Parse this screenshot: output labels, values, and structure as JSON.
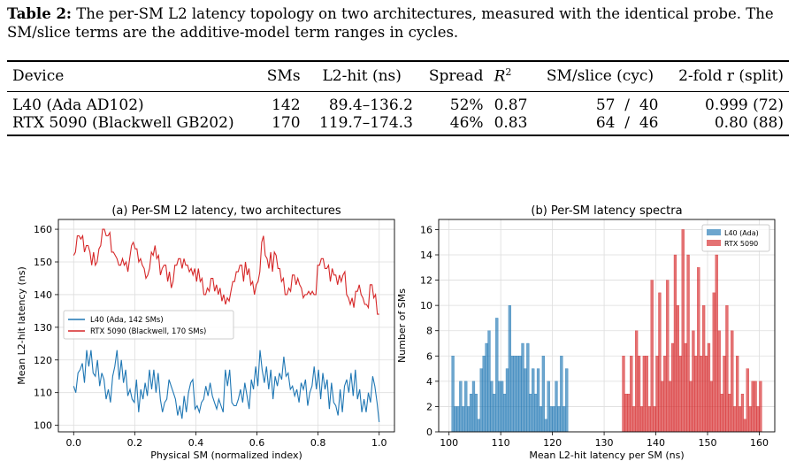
{
  "caption": {
    "label": "Table 2:",
    "text": " The per-SM L2 latency topology on two architectures, measured with the identical probe. The SM/slice terms are the additive-model term ranges in cycles."
  },
  "table": {
    "headers": [
      "Device",
      "SMs",
      "L2-hit (ns)",
      "Spread",
      "R",
      "SM/slice (cyc)",
      "2-fold r (split)"
    ],
    "r_superscript": "2",
    "rows": [
      [
        "L40 (Ada AD102)",
        "142",
        "89.4–136.2",
        "52%",
        "0.87",
        "57  /  40",
        "0.999 (72)"
      ],
      [
        "RTX 5090 (Blackwell GB202)",
        "170",
        "119.7–174.3",
        "46%",
        "0.83",
        "64  /  46",
        "0.80 (88)"
      ]
    ]
  },
  "chart_data": [
    {
      "type": "line",
      "title": "(a) Per-SM L2 latency, two architectures",
      "xlabel": "Physical SM (normalized index)",
      "ylabel": "Mean L2-hit latency (ns)",
      "xlim": [
        -0.05,
        1.05
      ],
      "ylim": [
        98,
        163
      ],
      "xticks": [
        "0.0",
        "0.2",
        "0.4",
        "0.6",
        "0.8",
        "1.0"
      ],
      "yticks": [
        "100",
        "110",
        "120",
        "130",
        "140",
        "150",
        "160"
      ],
      "grid": true,
      "legend": "center-left",
      "series": [
        {
          "name": "L40 (Ada, 142 SMs)",
          "color": "#1f77b4",
          "x": [
            0,
            0.00709,
            0.01418,
            0.02128,
            0.02837,
            0.03546,
            0.04255,
            0.04965,
            0.05674,
            0.06383,
            0.07092,
            0.07801,
            0.08511,
            0.0922,
            0.09929,
            0.10638,
            0.11348,
            0.12057,
            0.12766,
            0.13475,
            0.14184,
            0.14894,
            0.15603,
            0.16312,
            0.17021,
            0.1773,
            0.1844,
            0.19149,
            0.19858,
            0.20567,
            0.21277,
            0.21986,
            0.22695,
            0.23404,
            0.24113,
            0.24823,
            0.25532,
            0.26241,
            0.2695,
            0.2766,
            0.28369,
            0.29078,
            0.29787,
            0.30496,
            0.31206,
            0.31915,
            0.32624,
            0.33333,
            0.34043,
            0.34752,
            0.35461,
            0.3617,
            0.36879,
            0.37589,
            0.38298,
            0.39007,
            0.39716,
            0.40426,
            0.41135,
            0.41844,
            0.42553,
            0.43262,
            0.43972,
            0.44681,
            0.4539,
            0.46099,
            0.46809,
            0.47518,
            0.48227,
            0.48936,
            0.49645,
            0.50355,
            0.51064,
            0.51773,
            0.52482,
            0.53191,
            0.53901,
            0.5461,
            0.55319,
            0.56028,
            0.56738,
            0.57447,
            0.58156,
            0.58865,
            0.59574,
            0.60284,
            0.60993,
            0.61702,
            0.62411,
            0.63121,
            0.6383,
            0.64539,
            0.65248,
            0.65957,
            0.66667,
            0.67376,
            0.68085,
            0.68794,
            0.69504,
            0.70213,
            0.70922,
            0.71631,
            0.7234,
            0.7305,
            0.73759,
            0.74468,
            0.75177,
            0.75887,
            0.76596,
            0.77305,
            0.78014,
            0.78723,
            0.79433,
            0.80142,
            0.80851,
            0.8156,
            0.8227,
            0.82979,
            0.83688,
            0.84397,
            0.85106,
            0.85816,
            0.86525,
            0.87234,
            0.87943,
            0.88652,
            0.89362,
            0.90071,
            0.9078,
            0.91489,
            0.92199,
            0.92908,
            0.93617,
            0.94326,
            0.95035,
            0.95745,
            0.96454,
            0.97163,
            0.97872,
            0.98582,
            0.99291,
            1
          ],
          "y": [
            112,
            110,
            116,
            117,
            119,
            113,
            123,
            118,
            123,
            116,
            115,
            120,
            112,
            116,
            114,
            108,
            111,
            107,
            115,
            118,
            123,
            114,
            120,
            113,
            117,
            109,
            111,
            108,
            107,
            114,
            104,
            111,
            108,
            113,
            109,
            117,
            111,
            117,
            110,
            116,
            108,
            104,
            107,
            108,
            114,
            112,
            110,
            108,
            103,
            106,
            102,
            109,
            104,
            110,
            113,
            114,
            105,
            106,
            104,
            107,
            108,
            112,
            109,
            113,
            109,
            107,
            105,
            108,
            106,
            104,
            117,
            112,
            117,
            107,
            106,
            106,
            108,
            111,
            107,
            113,
            109,
            105,
            114,
            111,
            118,
            112,
            123,
            117,
            113,
            118,
            111,
            117,
            108,
            115,
            112,
            116,
            114,
            121,
            115,
            116,
            111,
            112,
            109,
            111,
            107,
            113,
            111,
            114,
            106,
            110,
            112,
            118,
            111,
            117,
            108,
            116,
            111,
            114,
            105,
            113,
            107,
            106,
            103,
            111,
            104,
            112,
            114,
            110,
            116,
            109,
            117,
            108,
            111,
            104,
            108,
            104,
            110,
            107,
            115,
            112,
            107,
            101
          ]
        },
        {
          "name": "RTX 5090 (Blackwell, 170 SMs)",
          "color": "#d62728",
          "x": [
            0,
            0.00592,
            0.01183,
            0.01775,
            0.02367,
            0.02959,
            0.0355,
            0.04142,
            0.04734,
            0.05325,
            0.05917,
            0.06509,
            0.07101,
            0.07692,
            0.08284,
            0.08876,
            0.09467,
            0.10059,
            0.10651,
            0.11243,
            0.11834,
            0.12426,
            0.13018,
            0.13609,
            0.14201,
            0.14793,
            0.15385,
            0.15976,
            0.16568,
            0.1716,
            0.17751,
            0.18343,
            0.18935,
            0.19527,
            0.20118,
            0.2071,
            0.21302,
            0.21893,
            0.22485,
            0.23077,
            0.23669,
            0.2426,
            0.24852,
            0.25444,
            0.26036,
            0.26627,
            0.27219,
            0.27811,
            0.28402,
            0.28994,
            0.29586,
            0.30178,
            0.30769,
            0.31361,
            0.31953,
            0.32544,
            0.33136,
            0.33728,
            0.3432,
            0.34911,
            0.35503,
            0.36095,
            0.36686,
            0.37278,
            0.3787,
            0.38462,
            0.39053,
            0.39645,
            0.40237,
            0.40828,
            0.4142,
            0.42012,
            0.42604,
            0.43195,
            0.43787,
            0.44379,
            0.4497,
            0.45562,
            0.46154,
            0.46746,
            0.47337,
            0.47929,
            0.48521,
            0.49112,
            0.49704,
            0.50296,
            0.50888,
            0.51479,
            0.52071,
            0.52663,
            0.53254,
            0.53846,
            0.54438,
            0.5503,
            0.55621,
            0.56213,
            0.56805,
            0.57396,
            0.57988,
            0.5858,
            0.59172,
            0.59763,
            0.60355,
            0.60947,
            0.61538,
            0.6213,
            0.62722,
            0.63314,
            0.63905,
            0.64497,
            0.65089,
            0.6568,
            0.66272,
            0.66864,
            0.67456,
            0.68047,
            0.68639,
            0.69231,
            0.69822,
            0.70414,
            0.71006,
            0.71598,
            0.72189,
            0.72781,
            0.73373,
            0.73964,
            0.74556,
            0.75148,
            0.75739,
            0.76331,
            0.76923,
            0.77515,
            0.78107,
            0.78698,
            0.7929,
            0.79882,
            0.80473,
            0.81065,
            0.81657,
            0.82249,
            0.8284,
            0.83432,
            0.84024,
            0.84615,
            0.85207,
            0.85799,
            0.86391,
            0.86982,
            0.87574,
            0.88166,
            0.88757,
            0.89349,
            0.89941,
            0.90533,
            0.91124,
            0.91716,
            0.92308,
            0.92899,
            0.93491,
            0.94083,
            0.94675,
            0.95266,
            0.95858,
            0.9645,
            0.97041,
            0.97633,
            0.98225,
            0.98817,
            0.99408,
            1
          ],
          "y": [
            152,
            153,
            158,
            158,
            157,
            158,
            153,
            155,
            155,
            153,
            149,
            153,
            149,
            150,
            154,
            155,
            160,
            160,
            158,
            158,
            159,
            153,
            153,
            152,
            151,
            149,
            149,
            151,
            149,
            150,
            147,
            151,
            155,
            156,
            154,
            154,
            150,
            151,
            149,
            148,
            145,
            146,
            148,
            153,
            152,
            155,
            151,
            152,
            146,
            148,
            149,
            149,
            144,
            147,
            142,
            144,
            149,
            149,
            151,
            151,
            148,
            151,
            149,
            149,
            147,
            148,
            146,
            148,
            144,
            148,
            144,
            145,
            140,
            140,
            142,
            141,
            145,
            145,
            141,
            143,
            140,
            142,
            138,
            140,
            137,
            139,
            138,
            141,
            144,
            144,
            147,
            147,
            149,
            149,
            144,
            150,
            146,
            148,
            143,
            144,
            140,
            143,
            144,
            147,
            156,
            158,
            152,
            151,
            148,
            153,
            147,
            153,
            152,
            148,
            148,
            144,
            145,
            140,
            140,
            142,
            141,
            146,
            146,
            143,
            145,
            143,
            142,
            139,
            140,
            140,
            141,
            140,
            141,
            140,
            140,
            149,
            149,
            151,
            151,
            148,
            148,
            149,
            144,
            148,
            146,
            146,
            143,
            146,
            144,
            146,
            147,
            140,
            139,
            137,
            139,
            136,
            141,
            141,
            143,
            140,
            139,
            137,
            137,
            136,
            143,
            143,
            139,
            140,
            134,
            134
          ]
        }
      ]
    },
    {
      "type": "bar",
      "title": "(b) Per-SM latency spectra",
      "xlabel": "Mean L2-hit latency per SM (ns)",
      "ylabel": "Number of SMs",
      "xlim": [
        98,
        163
      ],
      "ylim": [
        0,
        16.8
      ],
      "xticks": [
        "100",
        "110",
        "120",
        "130",
        "140",
        "150",
        "160"
      ],
      "yticks": [
        "0",
        "2",
        "4",
        "6",
        "8",
        "10",
        "12",
        "14",
        "16"
      ],
      "grid": true,
      "legend": "top-right",
      "bin_width": 0.5,
      "series": [
        {
          "name": "L40 (Ada)",
          "color": "#1f77b4",
          "bin_start": [
            100.5,
            101,
            101.5,
            102,
            102.5,
            103,
            103.5,
            104,
            104.5,
            105,
            105.5,
            106,
            106.5,
            107,
            107.5,
            108,
            108.5,
            109,
            109.5,
            110,
            110.5,
            111,
            111.5,
            112,
            112.5,
            113,
            113.5,
            114,
            114.5,
            115,
            115.5,
            116,
            116.5,
            117,
            117.5,
            118,
            118.5,
            119,
            119.5,
            120,
            120.5,
            121,
            121.5,
            122,
            122.5
          ],
          "values": [
            6,
            2,
            2,
            4,
            2,
            4,
            2,
            3,
            4,
            3,
            1,
            5,
            6,
            7,
            8,
            4,
            3,
            9,
            4,
            4,
            3,
            5,
            10,
            6,
            6,
            6,
            6,
            7,
            5,
            7,
            3,
            5,
            3,
            5,
            2,
            6,
            1,
            4,
            2,
            2,
            4,
            2,
            6,
            2,
            5
          ]
        },
        {
          "name": "RTX 5090",
          "color": "#d62728",
          "bin_start": [
            133.5,
            134,
            134.5,
            135,
            135.5,
            136,
            136.5,
            137,
            137.5,
            138,
            138.5,
            139,
            139.5,
            140,
            140.5,
            141,
            141.5,
            142,
            142.5,
            143,
            143.5,
            144,
            144.5,
            145,
            145.5,
            146,
            146.5,
            147,
            147.5,
            148,
            148.5,
            149,
            149.5,
            150,
            150.5,
            151,
            151.5,
            152,
            152.5,
            153,
            153.5,
            154,
            154.5,
            155,
            155.5,
            156,
            156.5,
            157,
            157.5,
            158,
            158.5,
            159,
            159.5,
            160
          ],
          "values": [
            6,
            3,
            3,
            6,
            2,
            8,
            6,
            2,
            6,
            6,
            2,
            12,
            2,
            6,
            11,
            4,
            6,
            12,
            4,
            7,
            14,
            10,
            6,
            16,
            7,
            14,
            4,
            8,
            6,
            13,
            6,
            10,
            6,
            7,
            4,
            11,
            14,
            8,
            3,
            6,
            10,
            3,
            8,
            2,
            6,
            2,
            3,
            1,
            5,
            2,
            4,
            4,
            2,
            4
          ]
        }
      ]
    }
  ]
}
